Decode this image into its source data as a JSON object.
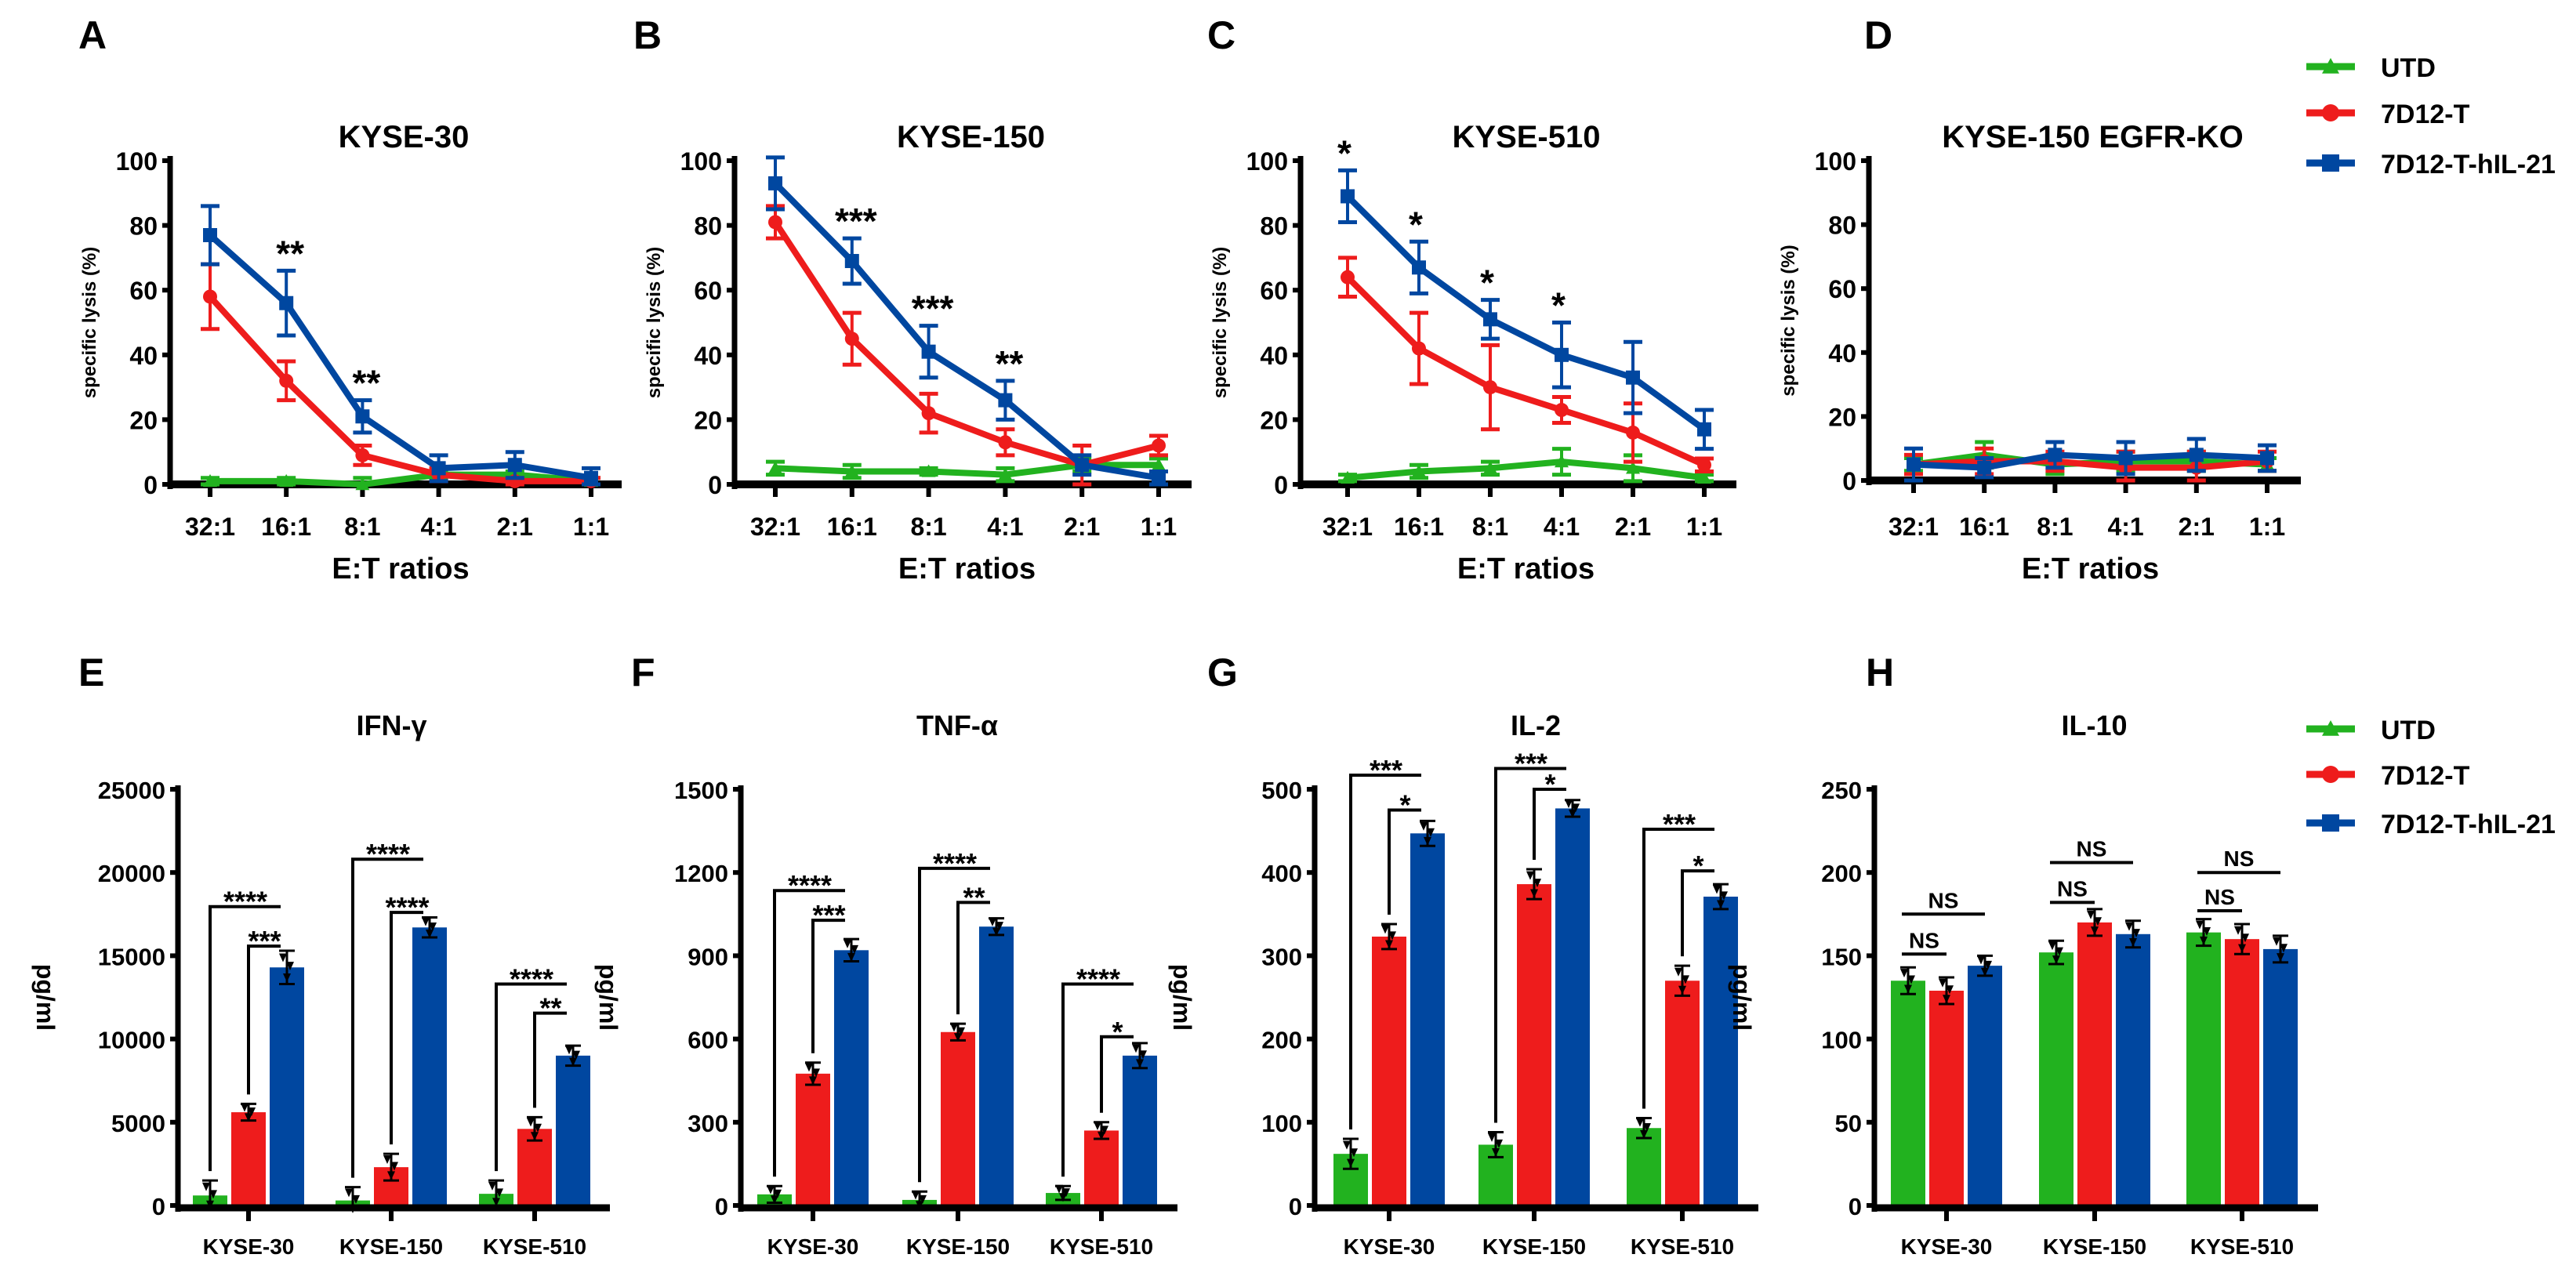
{
  "colors": {
    "UTD": "#22b21f",
    "7D12-T": "#ee1c1c",
    "7D12-T-hIL-21": "#0047a0"
  },
  "legend": {
    "items": [
      {
        "label": "UTD",
        "marker": "triangle",
        "color": "#22b21f"
      },
      {
        "label": "7D12-T",
        "marker": "circle",
        "color": "#ee1c1c"
      },
      {
        "label": "7D12-T-hIL-21",
        "marker": "square",
        "color": "#0047a0"
      }
    ]
  },
  "chart_data": [
    {
      "letter": "A",
      "type": "line",
      "title": "KYSE-30",
      "xlabel": "E:T ratios",
      "ylabel": "specific lysis (%)",
      "categories": [
        "32:1",
        "16:1",
        "8:1",
        "4:1",
        "2:1",
        "1:1"
      ],
      "ylim": [
        0,
        100
      ],
      "yticks": [
        0,
        20,
        40,
        60,
        80,
        100
      ],
      "series": [
        {
          "name": "UTD",
          "values": [
            1,
            1,
            0,
            3,
            3,
            1
          ],
          "errors": [
            1,
            1,
            2,
            1,
            1,
            1
          ]
        },
        {
          "name": "7D12-T",
          "values": [
            58,
            32,
            9,
            3,
            1,
            1
          ],
          "errors": [
            10,
            6,
            3,
            2,
            1,
            1
          ]
        },
        {
          "name": "7D12-T-hIL-21",
          "values": [
            77,
            56,
            21,
            5,
            6,
            2
          ],
          "errors": [
            9,
            10,
            5,
            4,
            4,
            3
          ]
        }
      ],
      "annotations": [
        {
          "category": "16:1",
          "label": "**"
        },
        {
          "category": "8:1",
          "label": "**"
        }
      ]
    },
    {
      "letter": "B",
      "type": "line",
      "title": "KYSE-150",
      "xlabel": "E:T ratios",
      "ylabel": "specific lysis (%)",
      "categories": [
        "32:1",
        "16:1",
        "8:1",
        "4:1",
        "2:1",
        "1:1"
      ],
      "ylim": [
        0,
        100
      ],
      "yticks": [
        0,
        20,
        40,
        60,
        80,
        100
      ],
      "series": [
        {
          "name": "UTD",
          "values": [
            5,
            4,
            4,
            3,
            6,
            6
          ],
          "errors": [
            2,
            2,
            1,
            2,
            2,
            2
          ]
        },
        {
          "name": "7D12-T",
          "values": [
            81,
            45,
            22,
            13,
            6,
            12
          ],
          "errors": [
            5,
            8,
            6,
            4,
            6,
            3
          ]
        },
        {
          "name": "7D12-T-hIL-21",
          "values": [
            93,
            69,
            41,
            26,
            6,
            2
          ],
          "errors": [
            8,
            7,
            8,
            6,
            3,
            2
          ]
        }
      ],
      "annotations": [
        {
          "category": "16:1",
          "label": "***"
        },
        {
          "category": "8:1",
          "label": "***"
        },
        {
          "category": "4:1",
          "label": "**"
        }
      ]
    },
    {
      "letter": "C",
      "type": "line",
      "title": "KYSE-510",
      "xlabel": "E:T ratios",
      "ylabel": "specific lysis (%)",
      "categories": [
        "32:1",
        "16:1",
        "8:1",
        "4:1",
        "2:1",
        "1:1"
      ],
      "ylim": [
        0,
        100
      ],
      "yticks": [
        0,
        20,
        40,
        60,
        80,
        100
      ],
      "series": [
        {
          "name": "UTD",
          "values": [
            2,
            4,
            5,
            7,
            5,
            2
          ],
          "errors": [
            1,
            2,
            2,
            4,
            4,
            1
          ]
        },
        {
          "name": "7D12-T",
          "values": [
            64,
            42,
            30,
            23,
            16,
            6
          ],
          "errors": [
            6,
            11,
            13,
            4,
            9,
            2
          ]
        },
        {
          "name": "7D12-T-hIL-21",
          "values": [
            89,
            67,
            51,
            40,
            33,
            17
          ],
          "errors": [
            8,
            8,
            6,
            10,
            11,
            6
          ]
        }
      ],
      "annotations": [
        {
          "category": "32:1",
          "label": "*"
        },
        {
          "category": "16:1",
          "label": "*"
        },
        {
          "category": "8:1",
          "label": "*"
        },
        {
          "category": "4:1",
          "label": "*"
        }
      ]
    },
    {
      "letter": "D",
      "type": "line",
      "title": "KYSE-150 EGFR-KO",
      "xlabel": "E:T ratios",
      "ylabel": "specific lysis (%)",
      "categories": [
        "32:1",
        "16:1",
        "8:1",
        "4:1",
        "2:1",
        "1:1"
      ],
      "ylim": [
        0,
        100
      ],
      "yticks": [
        0,
        20,
        40,
        60,
        80,
        100
      ],
      "series": [
        {
          "name": "UTD",
          "values": [
            5,
            8,
            5,
            6,
            6,
            5
          ],
          "errors": [
            2,
            4,
            3,
            3,
            3,
            2
          ]
        },
        {
          "name": "7D12-T",
          "values": [
            5,
            6,
            6,
            4,
            4,
            6
          ],
          "errors": [
            3,
            4,
            3,
            5,
            5,
            3
          ]
        },
        {
          "name": "7D12-T-hIL-21",
          "values": [
            5,
            4,
            8,
            7,
            8,
            7
          ],
          "errors": [
            5,
            3,
            4,
            5,
            5,
            4
          ]
        }
      ],
      "annotations": []
    },
    {
      "letter": "E",
      "type": "bar",
      "title": "IFN-γ",
      "ylabel": "pg/ml",
      "categories": [
        "KYSE-30",
        "KYSE-150",
        "KYSE-510"
      ],
      "ylim": [
        0,
        25000
      ],
      "yticks": [
        0,
        5000,
        10000,
        15000,
        20000,
        25000
      ],
      "series": [
        {
          "name": "UTD",
          "values": [
            600,
            300,
            700
          ],
          "errors": [
            900,
            800,
            800
          ]
        },
        {
          "name": "7D12-T",
          "values": [
            5600,
            2300,
            4600
          ],
          "errors": [
            500,
            800,
            700
          ]
        },
        {
          "name": "7D12-T-hIL-21",
          "values": [
            14300,
            16700,
            9000
          ],
          "errors": [
            1000,
            600,
            600
          ]
        }
      ],
      "brackets": [
        {
          "category": "KYSE-30",
          "from": "UTD",
          "to": "7D12-T-hIL-21",
          "y": 17950,
          "label": "****"
        },
        {
          "category": "KYSE-30",
          "from": "7D12-T",
          "to": "7D12-T-hIL-21",
          "y": 15575,
          "label": "***"
        },
        {
          "category": "KYSE-150",
          "from": "UTD",
          "to": "7D12-T-hIL-21",
          "y": 20800,
          "label": "****"
        },
        {
          "category": "KYSE-150",
          "from": "7D12-T",
          "to": "7D12-T-hIL-21",
          "y": 17600,
          "label": "****"
        },
        {
          "category": "KYSE-510",
          "from": "UTD",
          "to": "7D12-T-hIL-21",
          "y": 13300,
          "label": "****"
        },
        {
          "category": "KYSE-510",
          "from": "7D12-T",
          "to": "7D12-T-hIL-21",
          "y": 11550,
          "label": "**"
        }
      ]
    },
    {
      "letter": "F",
      "type": "bar",
      "title": "TNF-α",
      "ylabel": "pg/ml",
      "categories": [
        "KYSE-30",
        "KYSE-150",
        "KYSE-510"
      ],
      "ylim": [
        0,
        1500
      ],
      "yticks": [
        0,
        300,
        600,
        900,
        1200,
        1500
      ],
      "series": [
        {
          "name": "UTD",
          "values": [
            40,
            20,
            45
          ],
          "errors": [
            30,
            30,
            25
          ]
        },
        {
          "name": "7D12-T",
          "values": [
            475,
            625,
            270
          ],
          "errors": [
            40,
            30,
            30
          ]
        },
        {
          "name": "7D12-T-hIL-21",
          "values": [
            920,
            1005,
            540
          ],
          "errors": [
            40,
            30,
            45
          ]
        }
      ],
      "brackets": [
        {
          "category": "KYSE-30",
          "from": "UTD",
          "to": "7D12-T-hIL-21",
          "y": 1135,
          "label": "****"
        },
        {
          "category": "KYSE-30",
          "from": "7D12-T",
          "to": "7D12-T-hIL-21",
          "y": 1028,
          "label": "***"
        },
        {
          "category": "KYSE-150",
          "from": "UTD",
          "to": "7D12-T-hIL-21",
          "y": 1215,
          "label": "****"
        },
        {
          "category": "KYSE-150",
          "from": "7D12-T",
          "to": "7D12-T-hIL-21",
          "y": 1092,
          "label": "**"
        },
        {
          "category": "KYSE-510",
          "from": "UTD",
          "to": "7D12-T-hIL-21",
          "y": 798,
          "label": "****"
        },
        {
          "category": "KYSE-510",
          "from": "7D12-T",
          "to": "7D12-T-hIL-21",
          "y": 608,
          "label": "*"
        }
      ]
    },
    {
      "letter": "G",
      "type": "bar",
      "title": "IL-2",
      "ylabel": "pg/ml",
      "categories": [
        "KYSE-30",
        "KYSE-150",
        "KYSE-510"
      ],
      "ylim": [
        0,
        500
      ],
      "yticks": [
        0,
        100,
        200,
        300,
        400,
        500
      ],
      "series": [
        {
          "name": "UTD",
          "values": [
            62,
            73,
            93
          ],
          "errors": [
            18,
            15,
            12
          ]
        },
        {
          "name": "7D12-T",
          "values": [
            323,
            386,
            270
          ],
          "errors": [
            15,
            18,
            18
          ]
        },
        {
          "name": "7D12-T-hIL-21",
          "values": [
            447,
            477,
            371
          ],
          "errors": [
            15,
            10,
            15
          ]
        }
      ],
      "brackets": [
        {
          "category": "KYSE-30",
          "from": "UTD",
          "to": "7D12-T-hIL-21",
          "y": 517,
          "label": "***"
        },
        {
          "category": "KYSE-30",
          "from": "7D12-T",
          "to": "7D12-T-hIL-21",
          "y": 475,
          "label": "*"
        },
        {
          "category": "KYSE-150",
          "from": "UTD",
          "to": "7D12-T-hIL-21",
          "y": 525,
          "label": "***"
        },
        {
          "category": "KYSE-150",
          "from": "7D12-T",
          "to": "7D12-T-hIL-21",
          "y": 500,
          "label": "*"
        },
        {
          "category": "KYSE-510",
          "from": "UTD",
          "to": "7D12-T-hIL-21",
          "y": 452,
          "label": "***"
        },
        {
          "category": "KYSE-510",
          "from": "7D12-T",
          "to": "7D12-T-hIL-21",
          "y": 402,
          "label": "*"
        }
      ]
    },
    {
      "letter": "H",
      "type": "bar",
      "title": "IL-10",
      "ylabel": "pg/ml",
      "categories": [
        "KYSE-30",
        "KYSE-150",
        "KYSE-510"
      ],
      "ylim": [
        0,
        250
      ],
      "yticks": [
        0,
        50,
        100,
        150,
        200,
        250
      ],
      "series": [
        {
          "name": "UTD",
          "values": [
            135,
            152,
            164
          ],
          "errors": [
            8,
            7,
            8
          ]
        },
        {
          "name": "7D12-T",
          "values": [
            129,
            170,
            160
          ],
          "errors": [
            8,
            8,
            9
          ]
        },
        {
          "name": "7D12-T-hIL-21",
          "values": [
            144,
            163,
            154
          ],
          "errors": [
            6,
            8,
            8
          ]
        }
      ],
      "brackets": [
        {
          "category": "KYSE-30",
          "from": "UTD",
          "to": "7D12-T-hIL-21",
          "y": 175,
          "label": "NS"
        },
        {
          "category": "KYSE-30",
          "from": "UTD",
          "to": "7D12-T",
          "y": 151,
          "label": "NS"
        },
        {
          "category": "KYSE-150",
          "from": "UTD",
          "to": "7D12-T-hIL-21",
          "y": 206,
          "label": "NS"
        },
        {
          "category": "KYSE-150",
          "from": "UTD",
          "to": "7D12-T",
          "y": 182,
          "label": "NS"
        },
        {
          "category": "KYSE-510",
          "from": "UTD",
          "to": "7D12-T-hIL-21",
          "y": 200,
          "label": "NS"
        },
        {
          "category": "KYSE-510",
          "from": "UTD",
          "to": "7D12-T",
          "y": 177,
          "label": "NS"
        }
      ]
    }
  ]
}
